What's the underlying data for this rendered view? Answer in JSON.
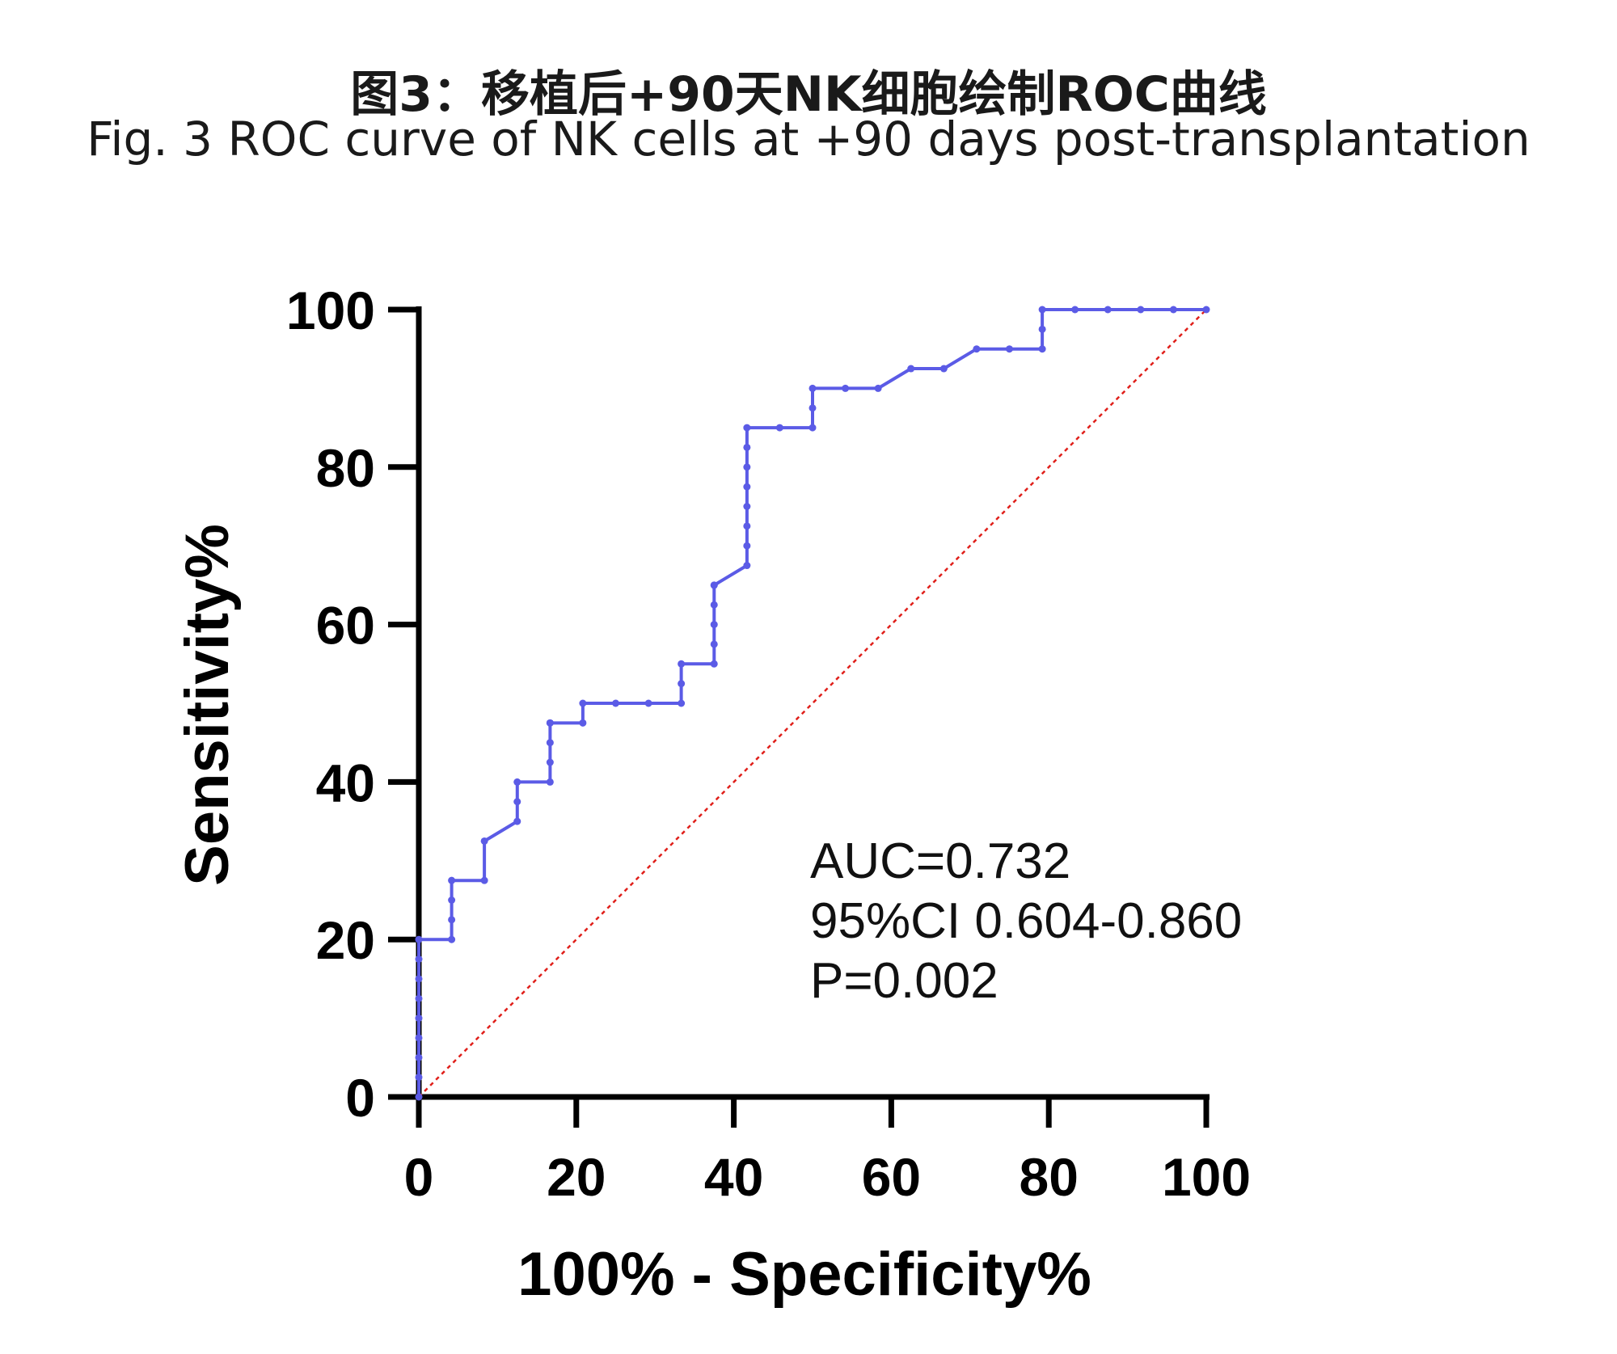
{
  "figure": {
    "title_cn": "图3：移植后+90天NK细胞绘制ROC曲线",
    "title_en": "Fig. 3 ROC curve of NK cells at +90 days post-transplantation"
  },
  "colors": {
    "curve": "#5b5be6",
    "reference": "#e0201b",
    "axis": "#000000"
  },
  "chart_data": {
    "type": "line",
    "title": "",
    "xlabel": "100% - Specificity%",
    "ylabel": "Sensitivity%",
    "xlim": [
      0,
      100
    ],
    "ylim": [
      0,
      100
    ],
    "xticks": [
      "0",
      "20",
      "40",
      "60",
      "80",
      "100"
    ],
    "yticks": [
      "0",
      "20",
      "40",
      "60",
      "80",
      "100"
    ],
    "grid": false,
    "series": [
      {
        "style": "step line with markers",
        "x": [
          0,
          0,
          0,
          0,
          0,
          0,
          0,
          0,
          0,
          4.17,
          4.17,
          4.17,
          4.17,
          8.33,
          8.33,
          12.5,
          12.5,
          12.5,
          16.67,
          16.67,
          16.67,
          16.67,
          16.67,
          20.83,
          20.83,
          25,
          29.17,
          33.33,
          33.33,
          33.33,
          37.5,
          37.5,
          37.5,
          37.5,
          37.5,
          37.5,
          41.67,
          41.67,
          41.67,
          41.67,
          41.67,
          41.67,
          41.67,
          41.67,
          45.83,
          50,
          50,
          50,
          54.17,
          58.33,
          62.5,
          66.67,
          70.83,
          75,
          79.17,
          79.17,
          79.17,
          83.33,
          87.5,
          91.67,
          95.83,
          100
        ],
        "y": [
          0,
          2.5,
          5,
          7.5,
          10,
          12.5,
          15,
          17.5,
          20,
          20,
          22.5,
          25,
          27.5,
          27.5,
          32.5,
          35,
          37.5,
          40,
          40,
          42.5,
          45,
          47.5,
          47.5,
          47.5,
          50,
          50,
          50,
          50,
          52.5,
          55,
          55,
          57.5,
          60,
          62.5,
          65,
          65,
          67.5,
          70,
          72.5,
          75,
          77.5,
          80,
          82.5,
          85,
          85,
          85,
          87.5,
          90,
          90,
          90,
          92.5,
          92.5,
          95,
          95,
          95,
          97.5,
          100,
          100,
          100,
          100,
          100,
          100
        ]
      },
      {
        "style": "dotted reference line",
        "x": [
          0,
          100
        ],
        "y": [
          0,
          100
        ]
      }
    ],
    "annotations": [
      "AUC=0.732",
      "95%CI 0.604-0.860",
      "P=0.002"
    ]
  }
}
